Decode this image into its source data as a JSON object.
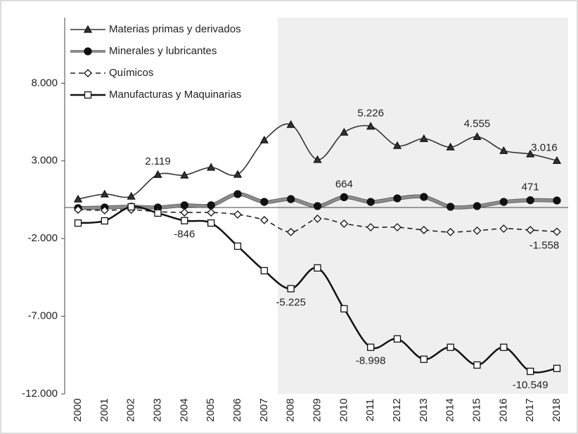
{
  "chart_data": {
    "type": "line",
    "categories": [
      "2000",
      "2001",
      "2002",
      "2003",
      "2004",
      "2005",
      "2006",
      "2007",
      "2008",
      "2009",
      "2010",
      "2011",
      "2012",
      "2013",
      "2014",
      "2015",
      "2016",
      "2017",
      "2018"
    ],
    "series": [
      {
        "name": "Materias primas y derivados",
        "color": "#333333",
        "marker": "triangle",
        "dash": false,
        "values": [
          540,
          860,
          720,
          2119,
          2080,
          2580,
          2130,
          4340,
          5340,
          3080,
          4840,
          5226,
          3980,
          4430,
          3890,
          4555,
          3660,
          3440,
          3016
        ],
        "value_labels": [
          null,
          null,
          null,
          "2.119",
          null,
          null,
          null,
          null,
          null,
          null,
          null,
          "5.226",
          null,
          null,
          null,
          "4.555",
          null,
          null,
          "3.016"
        ]
      },
      {
        "name": "Minerales y lubricantes",
        "color": "#8c8c8c",
        "marker": "circle",
        "dash": false,
        "values": [
          -40,
          0,
          50,
          0,
          140,
          140,
          860,
          360,
          540,
          90,
          664,
          360,
          590,
          680,
          45,
          90,
          360,
          471,
          450
        ],
        "value_labels": [
          null,
          null,
          null,
          null,
          null,
          null,
          null,
          null,
          null,
          null,
          "664",
          null,
          null,
          null,
          null,
          null,
          null,
          "471",
          null
        ]
      },
      {
        "name": "Químicos",
        "color": "#222222",
        "marker": "diamond",
        "dash": true,
        "values": [
          -140,
          -180,
          -140,
          -270,
          -320,
          -320,
          -450,
          -810,
          -1580,
          -720,
          -1040,
          -1270,
          -1270,
          -1450,
          -1580,
          -1490,
          -1360,
          -1450,
          -1558
        ],
        "value_labels": [
          null,
          null,
          null,
          null,
          null,
          null,
          null,
          null,
          null,
          null,
          null,
          null,
          null,
          null,
          null,
          null,
          null,
          null,
          "-1.558"
        ]
      },
      {
        "name": "Manufacturas y Maquinarias",
        "color": "#111111",
        "marker": "square",
        "dash": false,
        "values": [
          -1000,
          -860,
          45,
          -360,
          -846,
          -1000,
          -2490,
          -4070,
          -5225,
          -3890,
          -6520,
          -8998,
          -8460,
          -9770,
          -9000,
          -10140,
          -9000,
          -10549,
          -10360
        ],
        "value_labels": [
          null,
          null,
          null,
          null,
          "-846",
          null,
          null,
          null,
          "-5.225",
          null,
          null,
          "-8.998",
          null,
          null,
          null,
          null,
          null,
          "-10.549",
          null
        ]
      }
    ],
    "ylim": [
      -12000,
      12000
    ],
    "yticks": [
      {
        "value": 8000,
        "label": "8.000"
      },
      {
        "value": 3000,
        "label": "3.000"
      },
      {
        "value": -2000,
        "label": "-2.000"
      },
      {
        "value": -7000,
        "label": "-7.000"
      },
      {
        "value": -12000,
        "label": "-12.000"
      }
    ]
  }
}
